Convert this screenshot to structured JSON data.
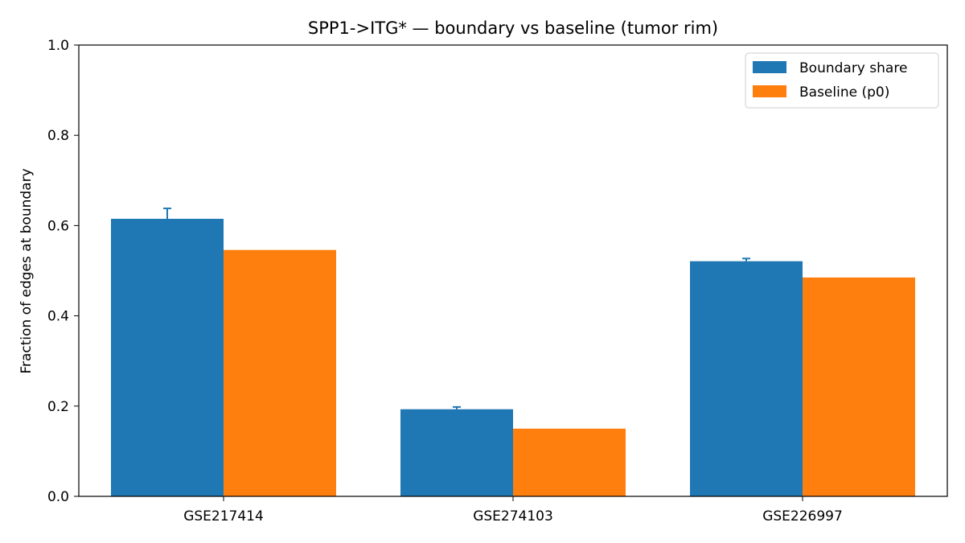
{
  "chart_data": {
    "type": "bar",
    "title": "SPP1->ITG* — boundary vs baseline (tumor rim)",
    "xlabel": "",
    "ylabel": "Fraction of edges at boundary",
    "categories": [
      "GSE217414",
      "GSE274103",
      "GSE226997"
    ],
    "ylim": [
      0,
      1.0
    ],
    "yticks": [
      "0.0",
      "0.2",
      "0.4",
      "0.6",
      "0.8",
      "1.0"
    ],
    "grid": false,
    "legend_position": "top-right",
    "series": [
      {
        "name": "Boundary share",
        "color": "#1f77b4",
        "values": [
          0.615,
          0.193,
          0.521
        ],
        "error_upper": [
          0.638,
          0.198,
          0.527
        ]
      },
      {
        "name": "Baseline (p0)",
        "color": "#ff7f0e",
        "values": [
          0.546,
          0.15,
          0.485
        ]
      }
    ]
  }
}
